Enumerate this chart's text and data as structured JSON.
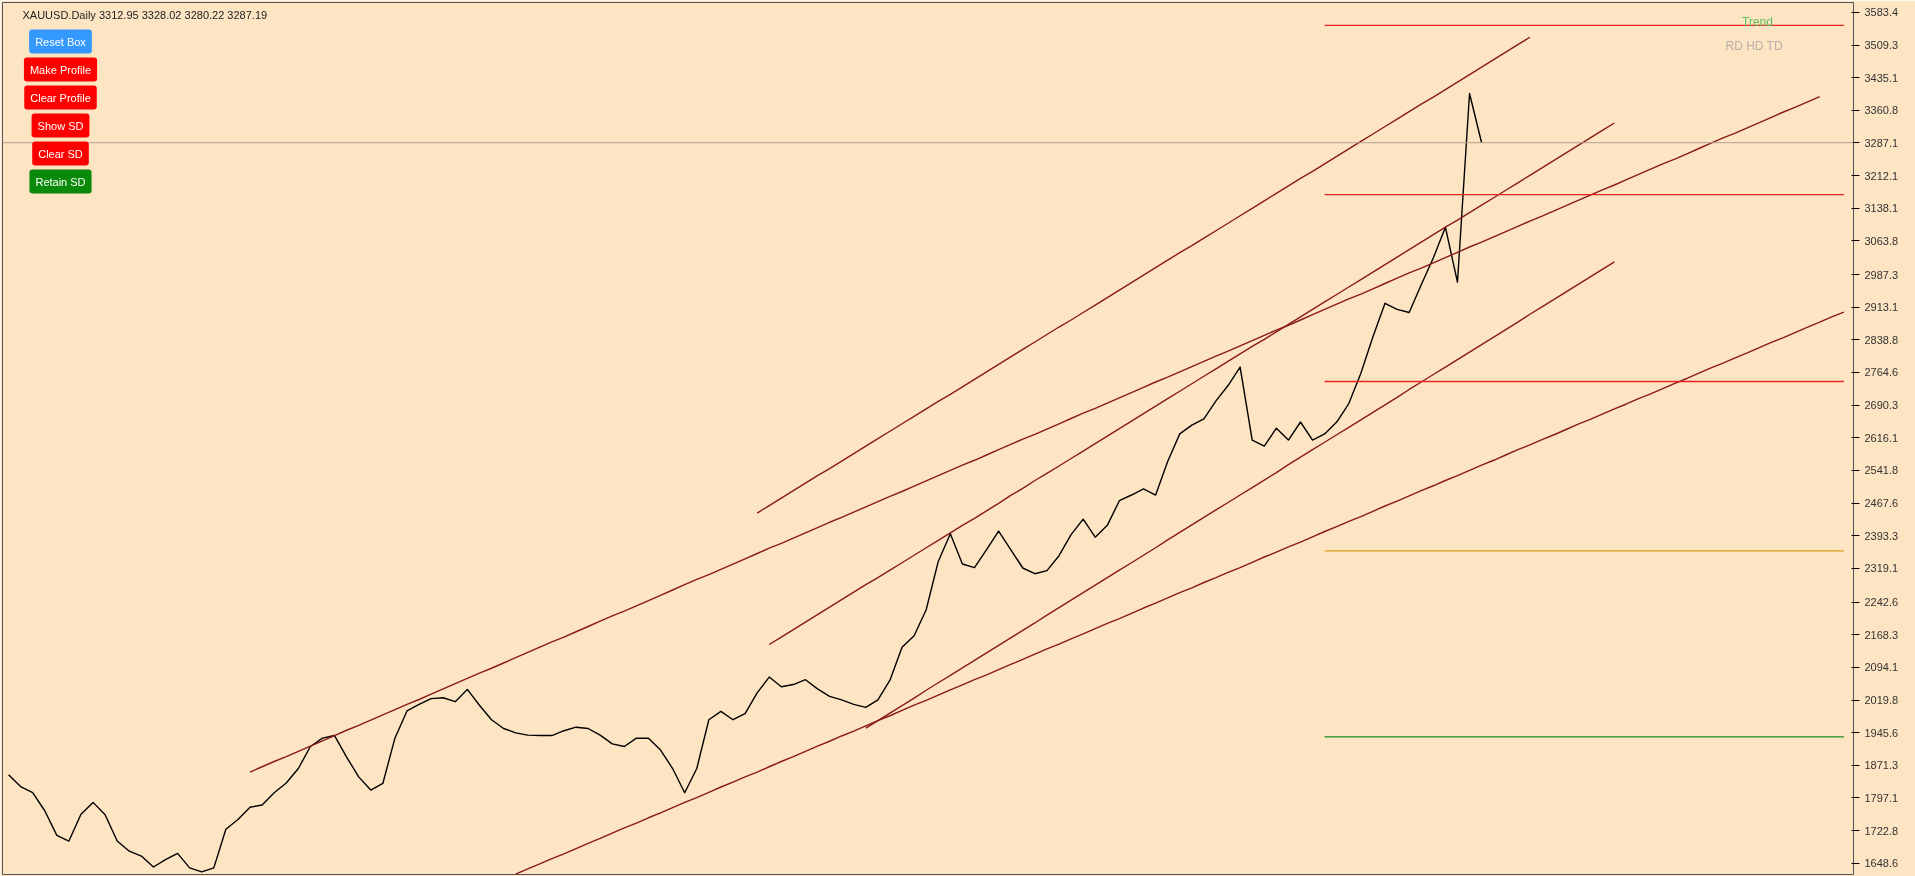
{
  "chart_data": {
    "type": "line",
    "title": "XAUUSD.Daily  3312.95 3328.02 3280.22 3287.19",
    "annotations": [
      "Reset Box",
      "Make Profile",
      "Clear Profile",
      "Show SD",
      "Clear SD",
      "Retain SD",
      "Trend",
      "RD  HD  TD"
    ],
    "categories": [
      null,
      null,
      null,
      null,
      null,
      null,
      null,
      null,
      null,
      null,
      null,
      null,
      null,
      null,
      null,
      null,
      null,
      null,
      null,
      null,
      null,
      null,
      null,
      null,
      null,
      null,
      null,
      null,
      null,
      null,
      null,
      null,
      null,
      null,
      null,
      null,
      null,
      null,
      null,
      null,
      null,
      null,
      null,
      null,
      null,
      null,
      null,
      null,
      null,
      null,
      null,
      null,
      null,
      null,
      null,
      null,
      null,
      null,
      null,
      null,
      null,
      null,
      null,
      null,
      null,
      null,
      null,
      null,
      null,
      null,
      null,
      null,
      null,
      null,
      null,
      null,
      null,
      null,
      null,
      null,
      null,
      null,
      null,
      null,
      null,
      null,
      null,
      null,
      null,
      null,
      null,
      null,
      null,
      null,
      null,
      null,
      null,
      null,
      null,
      null,
      null,
      null,
      null,
      null,
      null,
      null,
      null,
      null,
      null,
      null,
      null,
      null,
      null,
      null,
      null,
      null,
      null,
      null,
      null,
      null,
      null,
      null,
      null,
      null,
      null,
      null,
      null,
      null,
      null,
      null,
      null,
      null,
      null,
      null,
      null,
      null,
      null,
      null,
      null,
      null,
      null,
      null,
      null,
      null,
      null,
      null,
      null,
      null,
      null,
      null,
      null,
      null,
      null
    ],
    "ylim": [
      1623,
      3606
    ],
    "tick_labels": "y",
    "grid": false,
    "yticks": [
      3583.4,
      3509.3,
      3435.1,
      3360.8,
      3287.1,
      3212.1,
      3138.1,
      3063.8,
      2987.3,
      2913.1,
      2838.8,
      2764.6,
      2690.3,
      2616.1,
      2541.8,
      2467.6,
      2393.3,
      2319.1,
      2242.6,
      2168.3,
      2094.1,
      2019.8,
      1945.6,
      1871.3,
      1797.1,
      1722.8,
      1648.6
    ],
    "ref_lines": [
      {
        "axis": "y",
        "value": 3287.1,
        "color": "#b0a090"
      }
    ],
    "series": [
      {
        "color": "#000000",
        "values": [
          1850,
          1823,
          1809,
          1768,
          1712,
          1699,
          1760,
          1787,
          1759,
          1699,
          1676,
          1665,
          1640,
          1657,
          1671,
          1638,
          1629,
          1638,
          1726,
          1748,
          1776,
          1781,
          1809,
          1831,
          1864,
          1914,
          1933,
          1939,
          1890,
          1845,
          1815,
          1830,
          1933,
          1995,
          2010,
          2023,
          2025,
          2016,
          2044,
          2008,
          1975,
          1955,
          1945,
          1940,
          1939,
          1939,
          1950,
          1958,
          1955,
          1940,
          1920,
          1914,
          1933,
          1933,
          1906,
          1864,
          1809,
          1864,
          1975,
          1994,
          1975,
          1989,
          2036,
          2072,
          2050,
          2055,
          2066,
          2045,
          2028,
          2020,
          2010,
          2003,
          2020,
          2065,
          2140,
          2166,
          2225,
          2335,
          2398,
          2329,
          2321,
          2362,
          2404,
          2362,
          2320,
          2307,
          2314,
          2348,
          2396,
          2431,
          2390,
          2417,
          2473,
          2486,
          2500,
          2486,
          2562,
          2625,
          2645,
          2659,
          2700,
          2735,
          2777,
          2611,
          2597,
          2638,
          2611,
          2652,
          2611,
          2625,
          2652,
          2694,
          2763,
          2846,
          2922,
          2908,
          2901,
          2964,
          3025,
          3095,
          2970,
          3399,
          3287,
          null,
          null,
          null,
          null,
          null,
          null,
          null,
          null,
          null,
          null,
          null,
          null,
          null,
          null,
          null,
          null,
          null,
          null,
          null,
          null,
          null,
          null,
          null,
          null,
          null,
          null,
          null,
          null,
          null,
          null
        ]
      },
      {
        "color": "#8b1a1a",
        "values": [
          null,
          null,
          null,
          null,
          null,
          null,
          null,
          null,
          null,
          null,
          null,
          null,
          null,
          null,
          null,
          null,
          null,
          null,
          null,
          null,
          null,
          null,
          null,
          null,
          null,
          null,
          null,
          null,
          null,
          null,
          null,
          null,
          null,
          null,
          null,
          null,
          null,
          null,
          null,
          null,
          null,
          null,
          null,
          null,
          null,
          null,
          null,
          null,
          null,
          null,
          null,
          null,
          null,
          null,
          null,
          null,
          null,
          null,
          null,
          null,
          null,
          null,
          2445,
          2462,
          2479,
          2496,
          2513,
          2530,
          2546,
          2563,
          2580,
          2597,
          2614,
          2631,
          2648,
          2665,
          2682,
          2699,
          2715,
          2732,
          2749,
          2766,
          2783,
          2800,
          2817,
          2834,
          2851,
          2868,
          2884,
          2901,
          2918,
          2935,
          2952,
          2969,
          2986,
          3003,
          3020,
          3037,
          3053,
          3070,
          3087,
          3104,
          3121,
          3138,
          3155,
          3172,
          3189,
          3206,
          3222,
          3239,
          3256,
          3273,
          3290,
          3307,
          3324,
          3341,
          3358,
          3375,
          3391,
          3408,
          3425,
          3442,
          3459,
          3476,
          3493,
          3510,
          3527,
          null,
          null,
          null,
          null,
          null,
          null,
          null,
          null,
          null,
          null,
          null,
          null,
          null,
          null,
          null,
          null,
          null,
          null,
          null,
          null,
          null,
          null,
          null,
          null,
          null,
          null
        ]
      },
      {
        "color": "#8b1a1a",
        "values": [
          null,
          null,
          null,
          null,
          null,
          null,
          null,
          null,
          null,
          null,
          null,
          null,
          null,
          null,
          null,
          null,
          null,
          null,
          null,
          null,
          1856,
          1868,
          1880,
          1891,
          1903,
          1915,
          1927,
          1939,
          1951,
          1962,
          1974,
          1986,
          1998,
          2010,
          2021,
          2033,
          2045,
          2057,
          2069,
          2081,
          2092,
          2104,
          2116,
          2128,
          2140,
          2152,
          2163,
          2175,
          2187,
          2199,
          2211,
          2222,
          2234,
          2246,
          2258,
          2270,
          2282,
          2294,
          2305,
          2317,
          2329,
          2341,
          2353,
          2365,
          2376,
          2388,
          2400,
          2412,
          2424,
          2435,
          2447,
          2459,
          2471,
          2483,
          2494,
          2506,
          2518,
          2530,
          2542,
          2554,
          2565,
          2577,
          2589,
          2601,
          2613,
          2624,
          2636,
          2648,
          2660,
          2672,
          2683,
          2695,
          2707,
          2719,
          2731,
          2743,
          2754,
          2766,
          2778,
          2790,
          2802,
          2813,
          2825,
          2837,
          2849,
          2861,
          2872,
          2884,
          2896,
          2908,
          2920,
          2932,
          2943,
          2955,
          2967,
          2979,
          2991,
          3002,
          3014,
          3026,
          3038,
          3050,
          3061,
          3073,
          3085,
          3097,
          3109,
          3120,
          3132,
          3144,
          3156,
          3168,
          3180,
          3191,
          3203,
          3215,
          3227,
          3239,
          3250,
          3262,
          3274,
          3286,
          3298,
          3309,
          3321,
          3333,
          3345,
          3357,
          3368,
          3380,
          3392,
          null,
          null
        ]
      },
      {
        "color": "#8b1a1a",
        "values": [
          null,
          null,
          null,
          null,
          null,
          null,
          null,
          null,
          null,
          null,
          null,
          null,
          null,
          null,
          null,
          null,
          null,
          null,
          null,
          null,
          null,
          null,
          null,
          null,
          null,
          null,
          null,
          null,
          null,
          null,
          null,
          null,
          null,
          null,
          null,
          null,
          null,
          null,
          null,
          null,
          null,
          null,
          null,
          null,
          null,
          null,
          null,
          null,
          null,
          null,
          null,
          null,
          null,
          null,
          null,
          null,
          null,
          null,
          null,
          null,
          null,
          null,
          null,
          2146,
          2163,
          2180,
          2197,
          2214,
          2231,
          2248,
          2265,
          2282,
          2298,
          2315,
          2332,
          2349,
          2366,
          2383,
          2400,
          2417,
          2433,
          2450,
          2467,
          2485,
          2501,
          2519,
          2535,
          2552,
          2569,
          2586,
          2603,
          2620,
          2637,
          2654,
          2671,
          2688,
          2705,
          2722,
          2739,
          2756,
          2773,
          2790,
          2807,
          2824,
          2840,
          2857,
          2874,
          2891,
          2908,
          2925,
          2942,
          2959,
          2976,
          2993,
          3010,
          3027,
          3044,
          3061,
          3078,
          3095,
          3111,
          3128,
          3145,
          3162,
          3179,
          3196,
          3213,
          3230,
          3247,
          3264,
          3281,
          3298,
          3315,
          3332,
          null,
          null,
          null,
          null,
          null,
          null,
          null,
          null,
          null,
          null,
          null,
          null,
          null,
          null,
          null,
          null,
          null,
          null,
          null
        ]
      },
      {
        "color": "#8b1a1a",
        "values": [
          null,
          null,
          null,
          null,
          null,
          null,
          null,
          null,
          null,
          null,
          null,
          null,
          null,
          null,
          null,
          null,
          null,
          null,
          null,
          null,
          null,
          null,
          null,
          null,
          null,
          null,
          null,
          null,
          null,
          null,
          null,
          null,
          null,
          null,
          null,
          null,
          null,
          null,
          null,
          null,
          null,
          null,
          null,
          null,
          null,
          null,
          null,
          null,
          null,
          null,
          null,
          null,
          null,
          null,
          null,
          null,
          null,
          null,
          null,
          null,
          null,
          null,
          null,
          null,
          null,
          null,
          null,
          null,
          null,
          null,
          null,
          1956,
          1973,
          1990,
          2007,
          2024,
          2042,
          2059,
          2076,
          2093,
          2110,
          2127,
          2144,
          2161,
          2178,
          2195,
          2213,
          2230,
          2247,
          2264,
          2281,
          2298,
          2315,
          2332,
          2349,
          2366,
          2384,
          2401,
          2418,
          2435,
          2452,
          2469,
          2486,
          2503,
          2520,
          2537,
          2555,
          2572,
          2589,
          2606,
          2623,
          2640,
          2657,
          2674,
          2691,
          2708,
          2726,
          2743,
          2760,
          2777,
          2794,
          2811,
          2828,
          2845,
          2862,
          2879,
          2897,
          2914,
          2931,
          2948,
          2965,
          2982,
          2999,
          3016,
          null,
          null,
          null,
          null,
          null,
          null,
          null,
          null,
          null,
          null,
          null,
          null,
          null,
          null,
          null,
          null,
          null,
          null,
          null
        ]
      },
      {
        "color": "#8b1a1a",
        "values": [
          null,
          null,
          null,
          null,
          null,
          null,
          null,
          null,
          null,
          null,
          null,
          null,
          null,
          null,
          null,
          null,
          null,
          null,
          null,
          null,
          null,
          null,
          null,
          null,
          null,
          null,
          null,
          null,
          null,
          null,
          null,
          null,
          null,
          null,
          null,
          null,
          null,
          null,
          null,
          null,
          null,
          null,
          1624,
          1636,
          1647,
          1659,
          1670,
          1682,
          1694,
          1705,
          1717,
          1729,
          1740,
          1752,
          1763,
          1775,
          1787,
          1798,
          1810,
          1822,
          1833,
          1845,
          1856,
          1868,
          1880,
          1891,
          1903,
          1915,
          1926,
          1938,
          1949,
          1961,
          1973,
          1984,
          1996,
          2008,
          2019,
          2031,
          2043,
          2054,
          2066,
          2077,
          2089,
          2101,
          2112,
          2124,
          2136,
          2147,
          2159,
          2170,
          2182,
          2194,
          2205,
          2217,
          2229,
          2240,
          2252,
          2264,
          2275,
          2287,
          2298,
          2310,
          2321,
          2333,
          2345,
          2356,
          2368,
          2379,
          2391,
          2403,
          2414,
          2426,
          2437,
          2449,
          2461,
          2472,
          2484,
          2496,
          2507,
          2519,
          2530,
          2542,
          2554,
          2565,
          2577,
          2589,
          2600,
          2612,
          2623,
          2635,
          2647,
          2658,
          2670,
          2682,
          2693,
          2705,
          2716,
          2728,
          2740,
          2751,
          2763,
          2775,
          2786,
          2798,
          2809,
          2821,
          2833,
          2844,
          2856,
          2868,
          2879,
          2891,
          2902
        ]
      },
      {
        "color": "#e8241f",
        "values": [
          null,
          null,
          null,
          null,
          null,
          null,
          null,
          null,
          null,
          null,
          null,
          null,
          null,
          null,
          null,
          null,
          null,
          null,
          null,
          null,
          null,
          null,
          null,
          null,
          null,
          null,
          null,
          null,
          null,
          null,
          null,
          null,
          null,
          null,
          null,
          null,
          null,
          null,
          null,
          null,
          null,
          null,
          null,
          null,
          null,
          null,
          null,
          null,
          null,
          null,
          null,
          null,
          null,
          null,
          null,
          null,
          null,
          null,
          null,
          null,
          null,
          null,
          null,
          null,
          null,
          null,
          null,
          null,
          null,
          null,
          null,
          null,
          null,
          null,
          null,
          null,
          null,
          null,
          null,
          null,
          null,
          null,
          null,
          null,
          null,
          null,
          null,
          null,
          null,
          null,
          null,
          null,
          null,
          null,
          null,
          null,
          null,
          null,
          null,
          null,
          null,
          null,
          null,
          null,
          null,
          null,
          null,
          null,
          null,
          3554,
          3554,
          3554,
          3554,
          3554,
          3554,
          3554,
          3554,
          3554,
          3554,
          3554,
          3554,
          3554,
          3554,
          3554,
          3554,
          3554,
          3554,
          3554,
          3554,
          3554,
          3554,
          3554,
          3554,
          3554,
          3554,
          3554,
          3554,
          3554,
          3554,
          3554,
          3554,
          3554,
          3554,
          3554,
          3554,
          3554,
          3554,
          3554,
          3554,
          3554,
          3554,
          3554,
          3554
        ]
      },
      {
        "color": "#e8241f",
        "values": [
          null,
          null,
          null,
          null,
          null,
          null,
          null,
          null,
          null,
          null,
          null,
          null,
          null,
          null,
          null,
          null,
          null,
          null,
          null,
          null,
          null,
          null,
          null,
          null,
          null,
          null,
          null,
          null,
          null,
          null,
          null,
          null,
          null,
          null,
          null,
          null,
          null,
          null,
          null,
          null,
          null,
          null,
          null,
          null,
          null,
          null,
          null,
          null,
          null,
          null,
          null,
          null,
          null,
          null,
          null,
          null,
          null,
          null,
          null,
          null,
          null,
          null,
          null,
          null,
          null,
          null,
          null,
          null,
          null,
          null,
          null,
          null,
          null,
          null,
          null,
          null,
          null,
          null,
          null,
          null,
          null,
          null,
          null,
          null,
          null,
          null,
          null,
          null,
          null,
          null,
          null,
          null,
          null,
          null,
          null,
          null,
          null,
          null,
          null,
          null,
          null,
          null,
          null,
          null,
          null,
          null,
          null,
          null,
          null,
          3169,
          3169,
          3169,
          3169,
          3169,
          3169,
          3169,
          3169,
          3169,
          3169,
          3169,
          3169,
          3169,
          3169,
          3169,
          3169,
          3169,
          3169,
          3169,
          3169,
          3169,
          3169,
          3169,
          3169,
          3169,
          3169,
          3169,
          3169,
          3169,
          3169,
          3169,
          3169,
          3169,
          3169,
          3169,
          3169,
          3169,
          3169,
          3169,
          3169,
          3169,
          3169,
          3169,
          3169
        ]
      },
      {
        "color": "#e8241f",
        "values": [
          null,
          null,
          null,
          null,
          null,
          null,
          null,
          null,
          null,
          null,
          null,
          null,
          null,
          null,
          null,
          null,
          null,
          null,
          null,
          null,
          null,
          null,
          null,
          null,
          null,
          null,
          null,
          null,
          null,
          null,
          null,
          null,
          null,
          null,
          null,
          null,
          null,
          null,
          null,
          null,
          null,
          null,
          null,
          null,
          null,
          null,
          null,
          null,
          null,
          null,
          null,
          null,
          null,
          null,
          null,
          null,
          null,
          null,
          null,
          null,
          null,
          null,
          null,
          null,
          null,
          null,
          null,
          null,
          null,
          null,
          null,
          null,
          null,
          null,
          null,
          null,
          null,
          null,
          null,
          null,
          null,
          null,
          null,
          null,
          null,
          null,
          null,
          null,
          null,
          null,
          null,
          null,
          null,
          null,
          null,
          null,
          null,
          null,
          null,
          null,
          null,
          null,
          null,
          null,
          null,
          null,
          null,
          null,
          null,
          2744,
          2744,
          2744,
          2744,
          2744,
          2744,
          2744,
          2744,
          2744,
          2744,
          2744,
          2744,
          2744,
          2744,
          2744,
          2744,
          2744,
          2744,
          2744,
          2744,
          2744,
          2744,
          2744,
          2744,
          2744,
          2744,
          2744,
          2744,
          2744,
          2744,
          2744,
          2744,
          2744,
          2744,
          2744,
          2744,
          2744,
          2744,
          2744,
          2744,
          2744,
          2744,
          2744,
          2744
        ]
      },
      {
        "color": "#d4a020",
        "values": [
          null,
          null,
          null,
          null,
          null,
          null,
          null,
          null,
          null,
          null,
          null,
          null,
          null,
          null,
          null,
          null,
          null,
          null,
          null,
          null,
          null,
          null,
          null,
          null,
          null,
          null,
          null,
          null,
          null,
          null,
          null,
          null,
          null,
          null,
          null,
          null,
          null,
          null,
          null,
          null,
          null,
          null,
          null,
          null,
          null,
          null,
          null,
          null,
          null,
          null,
          null,
          null,
          null,
          null,
          null,
          null,
          null,
          null,
          null,
          null,
          null,
          null,
          null,
          null,
          null,
          null,
          null,
          null,
          null,
          null,
          null,
          null,
          null,
          null,
          null,
          null,
          null,
          null,
          null,
          null,
          null,
          null,
          null,
          null,
          null,
          null,
          null,
          null,
          null,
          null,
          null,
          null,
          null,
          null,
          null,
          null,
          null,
          null,
          null,
          null,
          null,
          null,
          null,
          null,
          null,
          null,
          null,
          null,
          null,
          2359,
          2359,
          2359,
          2359,
          2359,
          2359,
          2359,
          2359,
          2359,
          2359,
          2359,
          2359,
          2359,
          2359,
          2359,
          2359,
          2359,
          2359,
          2359,
          2359,
          2359,
          2359,
          2359,
          2359,
          2359,
          2359,
          2359,
          2359,
          2359,
          2359,
          2359,
          2359,
          2359,
          2359,
          2359,
          2359,
          2359,
          2359,
          2359,
          2359,
          2359,
          2359,
          2359,
          2359
        ]
      },
      {
        "color": "#1a8a1a",
        "values": [
          null,
          null,
          null,
          null,
          null,
          null,
          null,
          null,
          null,
          null,
          null,
          null,
          null,
          null,
          null,
          null,
          null,
          null,
          null,
          null,
          null,
          null,
          null,
          null,
          null,
          null,
          null,
          null,
          null,
          null,
          null,
          null,
          null,
          null,
          null,
          null,
          null,
          null,
          null,
          null,
          null,
          null,
          null,
          null,
          null,
          null,
          null,
          null,
          null,
          null,
          null,
          null,
          null,
          null,
          null,
          null,
          null,
          null,
          null,
          null,
          null,
          null,
          null,
          null,
          null,
          null,
          null,
          null,
          null,
          null,
          null,
          null,
          null,
          null,
          null,
          null,
          null,
          null,
          null,
          null,
          null,
          null,
          null,
          null,
          null,
          null,
          null,
          null,
          null,
          null,
          null,
          null,
          null,
          null,
          null,
          null,
          null,
          null,
          null,
          null,
          null,
          null,
          null,
          null,
          null,
          null,
          null,
          null,
          null,
          1936,
          1936,
          1936,
          1936,
          1936,
          1936,
          1936,
          1936,
          1936,
          1936,
          1936,
          1936,
          1936,
          1936,
          1936,
          1936,
          1936,
          1936,
          1936,
          1936,
          1936,
          1936,
          1936,
          1936,
          1936,
          1936,
          1936,
          1936,
          1936,
          1936,
          1936,
          1936,
          1936,
          1936,
          1936,
          1936,
          1936,
          1936,
          1936,
          1936,
          1936,
          1936,
          1936,
          1936
        ]
      }
    ]
  }
}
